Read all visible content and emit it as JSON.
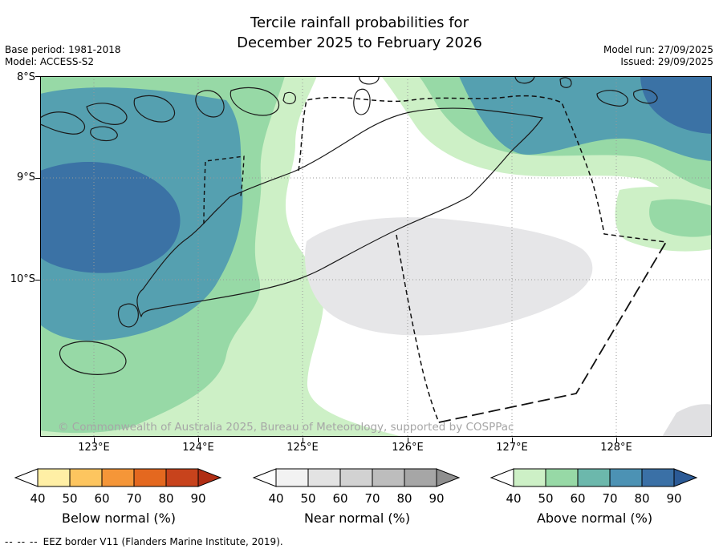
{
  "title": {
    "line1": "Tercile rainfall probabilities for",
    "line2": "December 2025 to February 2026"
  },
  "meta": {
    "base_period": "Base period: 1981-2018",
    "model": "Model: ACCESS-S2",
    "model_run": "Model run: 27/09/2025",
    "issued": "Issued: 29/09/2025"
  },
  "map": {
    "lat_labels": [
      "8°S",
      "9°S",
      "10°S"
    ],
    "lon_labels": [
      "123°E",
      "124°E",
      "125°E",
      "126°E",
      "127°E",
      "128°E"
    ],
    "copyright": "© Commonwealth of Australia 2025, Bureau of Meteorology, supported by COSPPac",
    "palette": {
      "sea_white": "#ffffff",
      "above_light": "#cdf0c6",
      "above_mid": "#97d9a6",
      "above_teal": "#55a0b0",
      "above_dark": "#3b72a5",
      "near_light": "#e6e6e8",
      "near_corner": "#e0e0e2"
    }
  },
  "legends": [
    {
      "title": "Below normal (%)",
      "ticks": [
        "40",
        "50",
        "60",
        "70",
        "80",
        "90"
      ],
      "left_arrow": "#ffffff",
      "boxes": [
        "#ffefa5",
        "#fdc55f",
        "#f59638",
        "#e4681f",
        "#c8431c"
      ],
      "right_arrow": "#b02e14"
    },
    {
      "title": "Near normal (%)",
      "ticks": [
        "40",
        "50",
        "60",
        "70",
        "80",
        "90"
      ],
      "left_arrow": "#ffffff",
      "boxes": [
        "#f2f2f2",
        "#e3e3e3",
        "#d2d2d2",
        "#bdbdbd",
        "#a6a6a6"
      ],
      "right_arrow": "#8f8f8f"
    },
    {
      "title": "Above normal (%)",
      "ticks": [
        "40",
        "50",
        "60",
        "70",
        "80",
        "90"
      ],
      "left_arrow": "#ffffff",
      "boxes": [
        "#cdf0c6",
        "#97d9a6",
        "#6cb8ac",
        "#4c92b4",
        "#3a70a6"
      ],
      "right_arrow": "#2b5a96"
    }
  ],
  "footnote": {
    "dash_sample": "-- -- --",
    "text": "EEZ border V11 (Flanders Marine Institute, 2019)."
  },
  "chart_data": {
    "type": "heatmap",
    "title": "Tercile rainfall probabilities for December 2025 to February 2026",
    "base_period": "1981-2018",
    "model": "ACCESS-S2",
    "model_run": "27/09/2025",
    "issued": "29/09/2025",
    "x_axis_ticks": [
      "123°E",
      "124°E",
      "125°E",
      "126°E",
      "127°E",
      "128°E"
    ],
    "y_axis_ticks": [
      "8°S",
      "9°S",
      "10°S"
    ],
    "scales": [
      {
        "name": "Below normal (%)",
        "breaks": [
          40,
          50,
          60,
          70,
          80,
          90
        ]
      },
      {
        "name": "Near normal (%)",
        "breaks": [
          40,
          50,
          60,
          70,
          80,
          90
        ]
      },
      {
        "name": "Above normal (%)",
        "breaks": [
          40,
          50,
          60,
          70,
          80,
          90
        ]
      }
    ],
    "features": [
      {
        "area": "sea west of Timor near 123°E 9.3°S",
        "tercile": "above normal",
        "probability": "80-90"
      },
      {
        "area": "northwest seas around Alor islands",
        "tercile": "above normal",
        "probability": "70-80"
      },
      {
        "area": "broad west and southwest band",
        "tercile": "above normal",
        "probability": "40-60"
      },
      {
        "area": "northeast corner near 128°E 8°S",
        "tercile": "above normal",
        "probability": "70-90"
      },
      {
        "area": "band along 128°E near 9°S",
        "tercile": "above normal",
        "probability": "40-50"
      },
      {
        "area": "sea south of Timor-Leste 125.5-127.5°E 9.5-10.3°S",
        "tercile": "near normal",
        "probability": "40-50"
      },
      {
        "area": "remaining white areas",
        "tercile": "none dominant",
        "probability": "<40"
      }
    ]
  }
}
